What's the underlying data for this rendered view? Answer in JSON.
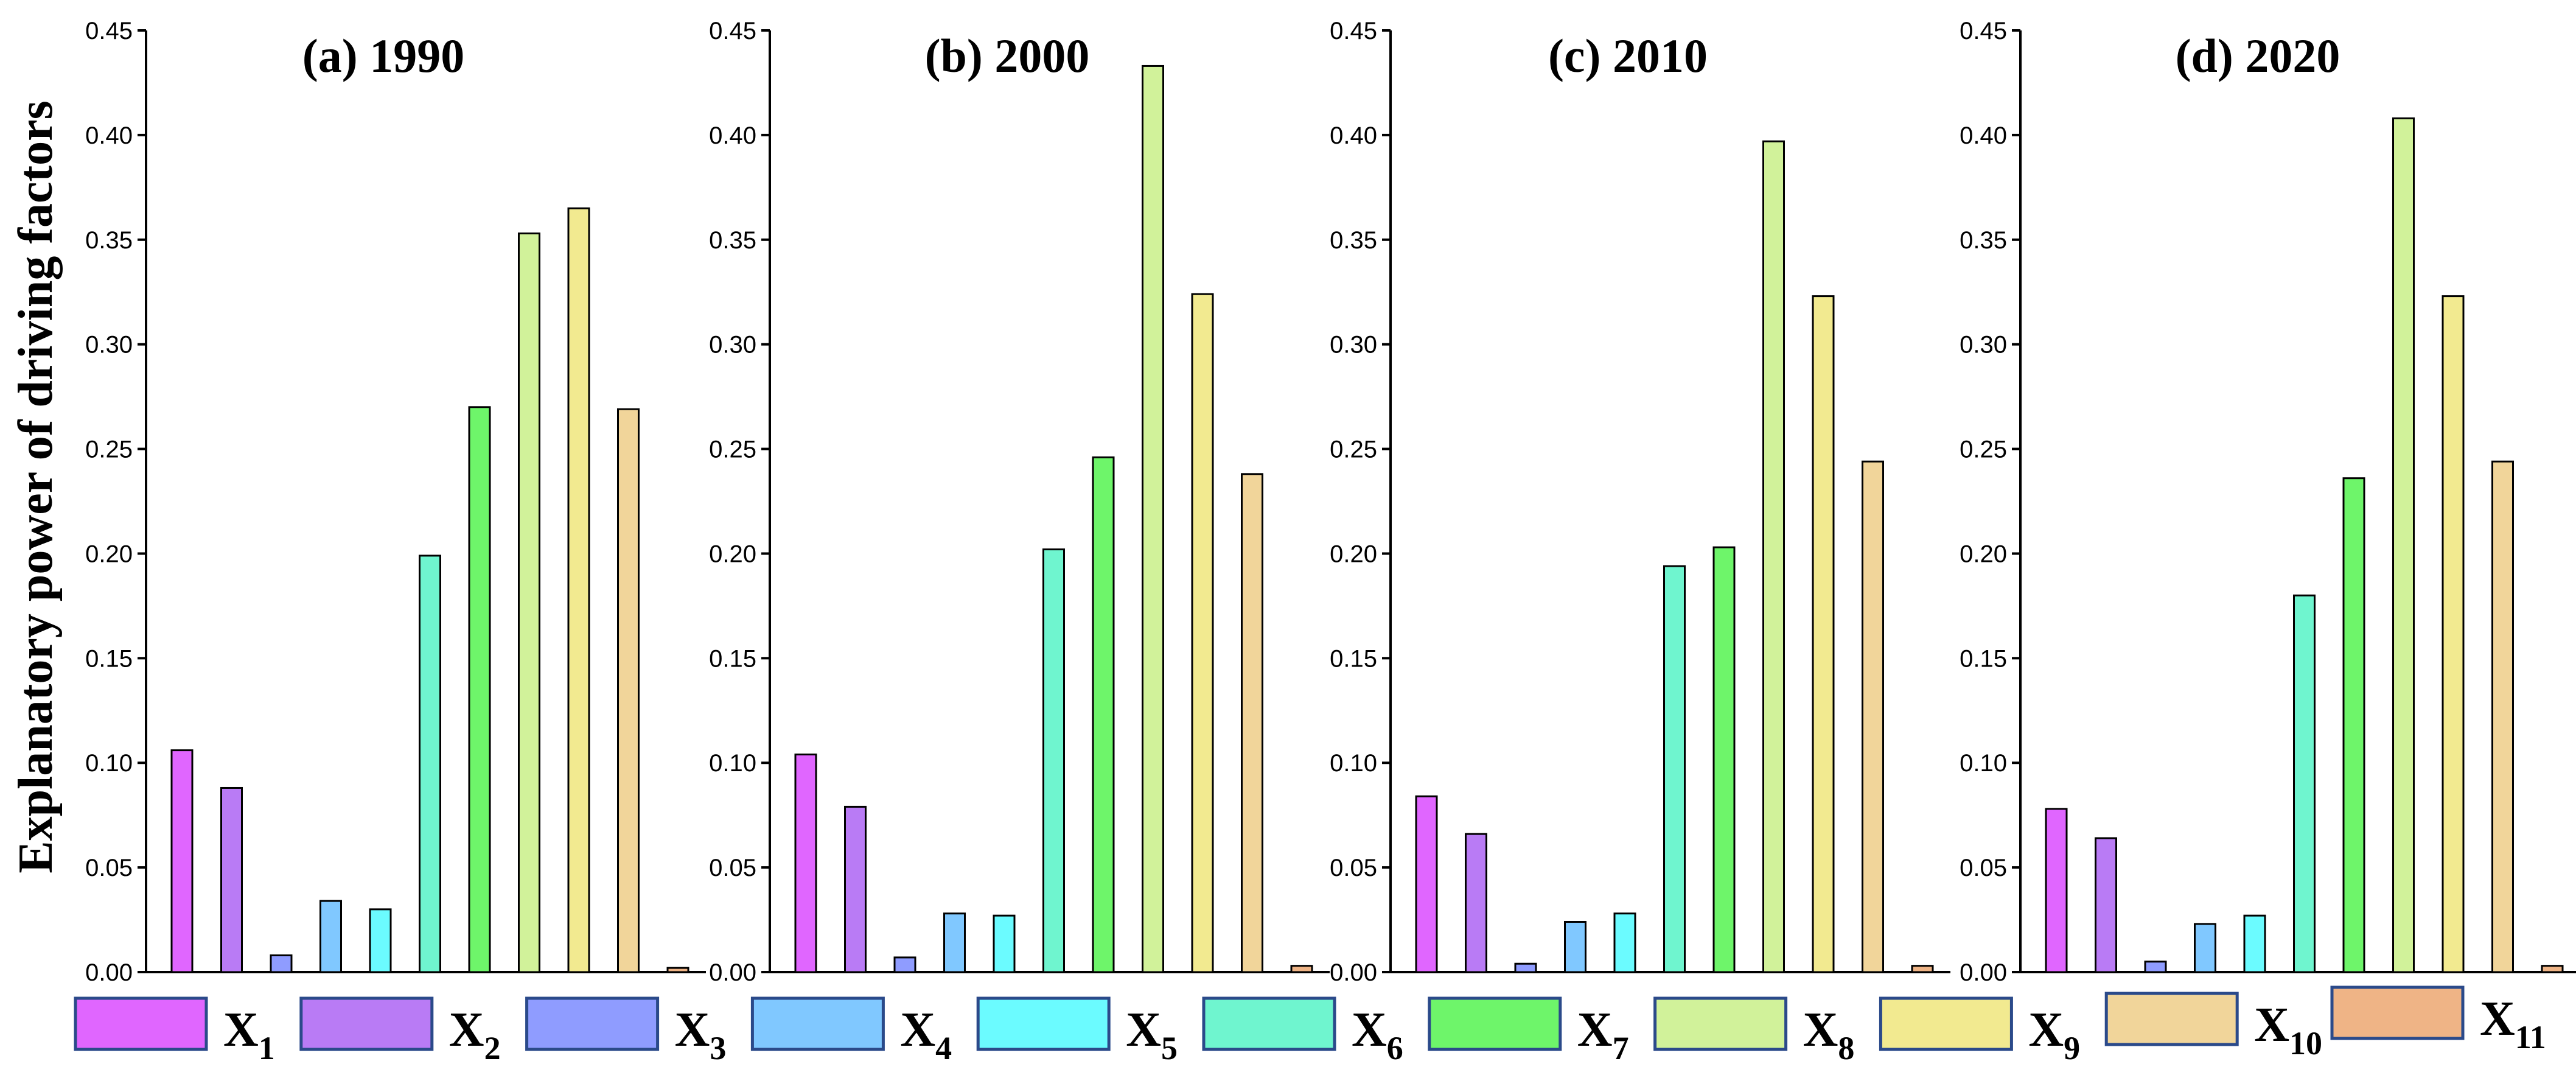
{
  "chart_data": {
    "type": "bar",
    "ylabel": "Explanatory power of driving factors",
    "ylim": [
      0,
      0.45
    ],
    "yticks": [
      "0.00",
      "0.05",
      "0.10",
      "0.15",
      "0.20",
      "0.25",
      "0.30",
      "0.35",
      "0.40",
      "0.45"
    ],
    "categories": [
      "X1",
      "X2",
      "X3",
      "X4",
      "X5",
      "X6",
      "X7",
      "X8",
      "X9",
      "X10",
      "X11"
    ],
    "legend": [
      {
        "label": "X",
        "sub": "1",
        "color": "#e066ff"
      },
      {
        "label": "X",
        "sub": "2",
        "color": "#b97bf5"
      },
      {
        "label": "X",
        "sub": "3",
        "color": "#8f9cff"
      },
      {
        "label": "X",
        "sub": "4",
        "color": "#80c8ff"
      },
      {
        "label": "X",
        "sub": "5",
        "color": "#6bfbff"
      },
      {
        "label": "X",
        "sub": "6",
        "color": "#6ff5cf"
      },
      {
        "label": "X",
        "sub": "7",
        "color": "#6ef56a"
      },
      {
        "label": "X",
        "sub": "8",
        "color": "#d1f29a"
      },
      {
        "label": "X",
        "sub": "9",
        "color": "#f2ea90"
      },
      {
        "label": "X",
        "sub": "10",
        "color": "#f1d59a"
      },
      {
        "label": "X",
        "sub": "11",
        "color": "#efb486"
      }
    ],
    "panels": [
      {
        "title": "(a) 1990",
        "values": [
          0.106,
          0.088,
          0.008,
          0.034,
          0.03,
          0.199,
          0.27,
          0.353,
          0.365,
          0.269,
          0.002
        ]
      },
      {
        "title": "(b) 2000",
        "values": [
          0.104,
          0.079,
          0.007,
          0.028,
          0.027,
          0.202,
          0.246,
          0.433,
          0.324,
          0.238,
          0.003
        ]
      },
      {
        "title": "(c) 2010",
        "values": [
          0.084,
          0.066,
          0.004,
          0.024,
          0.028,
          0.194,
          0.203,
          0.397,
          0.323,
          0.244,
          0.003
        ]
      },
      {
        "title": "(d) 2020",
        "values": [
          0.078,
          0.064,
          0.005,
          0.023,
          0.027,
          0.18,
          0.236,
          0.408,
          0.323,
          0.244,
          0.003
        ]
      }
    ]
  }
}
